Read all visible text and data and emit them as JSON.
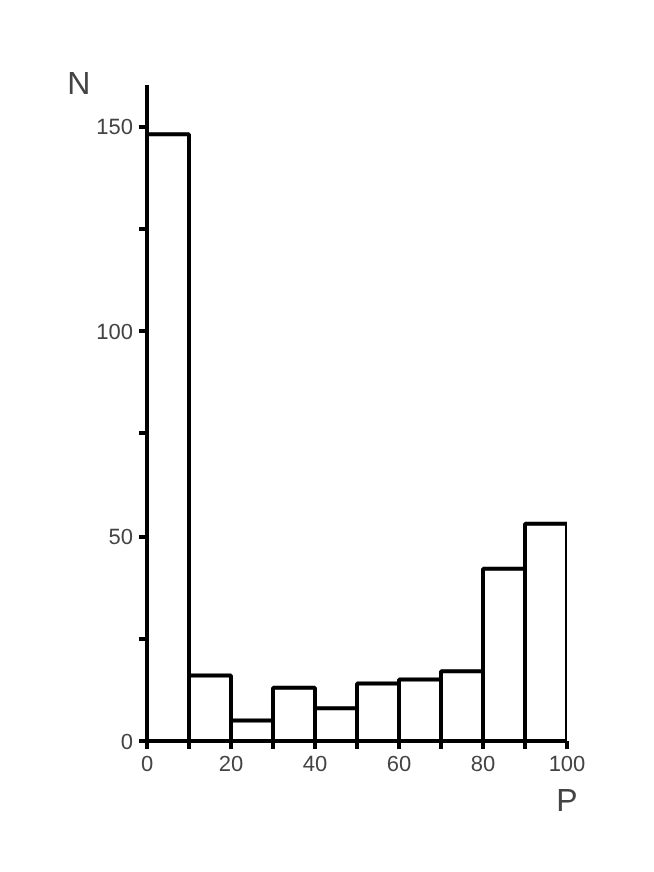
{
  "chart_data": {
    "type": "histogram",
    "xlabel": "P",
    "ylabel": "N",
    "bins": [
      0,
      10,
      20,
      30,
      40,
      50,
      60,
      70,
      80,
      90,
      100
    ],
    "values": [
      148,
      16,
      5,
      13,
      8,
      14,
      15,
      17,
      42,
      53
    ],
    "color": "#ffffff",
    "xlim": [
      0,
      100
    ],
    "ylim": [
      0,
      160
    ],
    "xticks": [
      0,
      {
        "value": 10,
        "label": null
      },
      20,
      {
        "value": 30,
        "label": null
      },
      40,
      {
        "value": 50,
        "label": null
      },
      60,
      {
        "value": 70,
        "label": null
      },
      80,
      {
        "value": 90,
        "label": null
      },
      100
    ],
    "yticks": [
      0,
      {
        "value": 25,
        "label": null
      },
      50,
      {
        "value": 75,
        "label": null
      },
      100,
      {
        "value": 125,
        "label": null
      },
      150
    ],
    "grid": false
  }
}
